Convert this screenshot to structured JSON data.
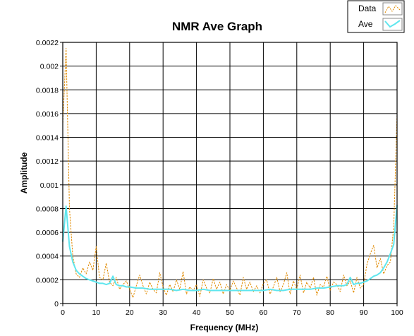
{
  "chart_data": {
    "type": "line",
    "title": "NMR Ave Graph",
    "xlabel": "Frequency (MHz)",
    "ylabel": "Amplitude",
    "xlim": [
      0,
      100
    ],
    "ylim": [
      0,
      0.0022
    ],
    "grid": true,
    "legend_placement": "top-right",
    "x_ticks": [
      "0",
      "10",
      "20",
      "30",
      "40",
      "50",
      "60",
      "70",
      "80",
      "90",
      "100"
    ],
    "y_ticks": [
      "0",
      "0.0002",
      "0.0004",
      "0.0006",
      "0.0008",
      "0.001",
      "0.0012",
      "0.0014",
      "0.0016",
      "0.0018",
      "0.002",
      "0.0022"
    ],
    "series": [
      {
        "name": "Data",
        "color": "#e08a00",
        "style": "dashed",
        "x": [
          0,
          1,
          2,
          3,
          4,
          5,
          6,
          7,
          8,
          9,
          10,
          11,
          12,
          13,
          14,
          15,
          16,
          17,
          18,
          19,
          20,
          21,
          22,
          23,
          24,
          25,
          26,
          27,
          28,
          29,
          30,
          31,
          32,
          33,
          34,
          35,
          36,
          37,
          38,
          39,
          40,
          41,
          42,
          43,
          44,
          45,
          46,
          47,
          48,
          49,
          50,
          51,
          52,
          53,
          54,
          55,
          56,
          57,
          58,
          59,
          60,
          61,
          62,
          63,
          64,
          65,
          66,
          67,
          68,
          69,
          70,
          71,
          72,
          73,
          74,
          75,
          76,
          77,
          78,
          79,
          80,
          81,
          82,
          83,
          84,
          85,
          86,
          87,
          88,
          89,
          90,
          91,
          92,
          93,
          94,
          95,
          96,
          97,
          98,
          99,
          100
        ],
        "values": [
          0.0015,
          0.00215,
          0.0008,
          0.0004,
          0.00025,
          0.00022,
          0.0003,
          0.00025,
          0.00035,
          0.00028,
          0.00048,
          0.00022,
          0.0002,
          0.00034,
          0.00018,
          0.00015,
          0.00022,
          0.00012,
          0.00016,
          0.00019,
          0.00012,
          5e-05,
          0.00015,
          0.00024,
          0.00015,
          8e-05,
          0.00018,
          0.00012,
          9e-05,
          0.00026,
          0.00014,
          7e-05,
          0.00016,
          0.0001,
          0.0002,
          0.00012,
          0.00027,
          8e-05,
          0.00014,
          0.00011,
          0.00016,
          6e-05,
          0.0002,
          0.00013,
          9e-05,
          0.00021,
          0.00012,
          0.00018,
          8e-05,
          0.00016,
          0.00011,
          0.00019,
          0.00013,
          7e-05,
          0.00022,
          0.00012,
          0.00018,
          0.0001,
          0.00015,
          9e-05,
          0.00017,
          0.0002,
          8e-05,
          0.00014,
          0.00022,
          0.0001,
          0.00016,
          0.00026,
          8e-05,
          0.00019,
          0.00012,
          0.00024,
          9e-05,
          0.00018,
          0.00013,
          0.00022,
          7e-05,
          0.00016,
          0.00014,
          0.00023,
          0.00011,
          0.00018,
          0.00016,
          0.0001,
          0.00024,
          0.00015,
          0.00019,
          9e-05,
          0.00022,
          0.00013,
          0.00016,
          0.00033,
          0.00042,
          0.00049,
          0.0003,
          0.00038,
          0.00025,
          0.00032,
          0.00035,
          0.00065,
          0.0016
        ]
      },
      {
        "name": "Ave",
        "color": "#5fe6ee",
        "style": "solid",
        "x": [
          0,
          1,
          2,
          3,
          4,
          5,
          6,
          7,
          8,
          9,
          10,
          11,
          12,
          13,
          14,
          15,
          16,
          17,
          18,
          19,
          20,
          22,
          24,
          26,
          28,
          30,
          32,
          34,
          36,
          38,
          40,
          42,
          44,
          46,
          48,
          50,
          52,
          54,
          56,
          58,
          60,
          62,
          64,
          66,
          68,
          70,
          72,
          74,
          76,
          78,
          80,
          82,
          84,
          85,
          86,
          87,
          88,
          89,
          90,
          91,
          92,
          93,
          94,
          95,
          96,
          97,
          98,
          99,
          100
        ],
        "values": [
          0.00052,
          0.00082,
          0.00048,
          0.00035,
          0.00028,
          0.00025,
          0.00023,
          0.00021,
          0.0002,
          0.00019,
          0.00018,
          0.00017,
          0.00017,
          0.00016,
          0.00017,
          0.00023,
          0.00016,
          0.00015,
          0.00015,
          0.00014,
          0.00014,
          0.00013,
          0.00013,
          0.00012,
          0.00012,
          0.00012,
          0.00012,
          0.00011,
          0.00012,
          0.00011,
          0.00011,
          0.00012,
          0.00011,
          0.00011,
          0.00011,
          0.00011,
          0.00011,
          0.00011,
          0.00011,
          0.00011,
          0.00011,
          0.00012,
          0.00011,
          0.00011,
          0.00012,
          0.00012,
          0.00012,
          0.00012,
          0.00013,
          0.00013,
          0.00014,
          0.00015,
          0.00015,
          0.00016,
          0.00022,
          0.00016,
          0.00017,
          0.00017,
          0.00018,
          0.00019,
          0.00021,
          0.00023,
          0.00024,
          0.00026,
          0.0003,
          0.00035,
          0.00042,
          0.0005,
          0.00083
        ]
      }
    ]
  }
}
